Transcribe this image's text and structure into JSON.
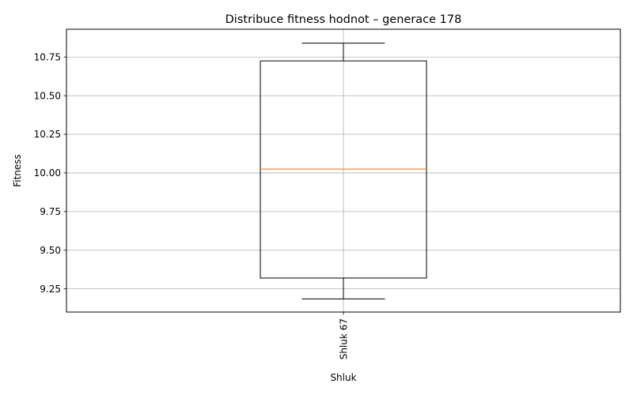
{
  "chart_data": {
    "type": "box",
    "title": "Distribuce fitness hodnot – generace 178",
    "xlabel": "Shluk",
    "ylabel": "Fitness",
    "ylim": [
      9.1,
      10.93
    ],
    "yticks": [
      9.25,
      9.5,
      9.75,
      10.0,
      10.25,
      10.5,
      10.75
    ],
    "ytick_labels": [
      "9.25",
      "9.50",
      "9.75",
      "10.00",
      "10.25",
      "10.50",
      "10.75"
    ],
    "grid": true,
    "categories": [
      "Shluk 67"
    ],
    "boxes": [
      {
        "category": "Shluk 67",
        "whisker_low": 9.185,
        "q1": 9.32,
        "median": 10.025,
        "q3": 10.725,
        "whisker_high": 10.84
      }
    ],
    "colors": {
      "box": "#000000",
      "median": "#ff7f0e",
      "grid": "#b0b0b0"
    }
  }
}
